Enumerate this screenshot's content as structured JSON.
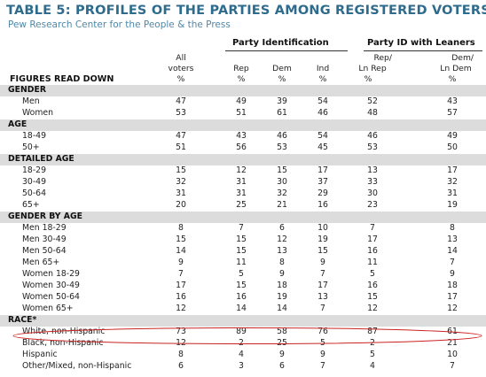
{
  "title": "TABLE 5: PROFILES OF THE PARTIES AMONG REGISTERED VOTERS",
  "subtitle": "Pew Research Center for the People & the Press",
  "group_headers": {
    "party_id": "Party Identification",
    "party_id_leaners": "Party ID with Leaners"
  },
  "column_headers": {
    "all_line1": "All",
    "all_line2": "voters",
    "rep": "Rep",
    "dem": "Dem",
    "ind": "Ind",
    "rep_ln_line1": "Rep/",
    "rep_ln_line2": "Ln Rep",
    "dem_ln_line1": "Dem/",
    "dem_ln_line2": "Ln Dem",
    "pct": "%"
  },
  "figures_note": "FIGURES READ DOWN",
  "annotation_color": "#cc2222",
  "rows": [
    {
      "label": "GENDER",
      "section": true
    },
    {
      "label": "Men",
      "values": [
        "47",
        "49",
        "39",
        "54",
        "52",
        "43"
      ]
    },
    {
      "label": "Women",
      "values": [
        "53",
        "51",
        "61",
        "46",
        "48",
        "57"
      ]
    },
    {
      "label": "AGE",
      "section": true
    },
    {
      "label": "18-49",
      "values": [
        "47",
        "43",
        "46",
        "54",
        "46",
        "49"
      ]
    },
    {
      "label": "50+",
      "values": [
        "51",
        "56",
        "53",
        "45",
        "53",
        "50"
      ]
    },
    {
      "label": "DETAILED AGE",
      "section": true
    },
    {
      "label": "18-29",
      "values": [
        "15",
        "12",
        "15",
        "17",
        "13",
        "17"
      ]
    },
    {
      "label": "30-49",
      "values": [
        "32",
        "31",
        "30",
        "37",
        "33",
        "32"
      ]
    },
    {
      "label": "50-64",
      "values": [
        "31",
        "31",
        "32",
        "29",
        "30",
        "31"
      ]
    },
    {
      "label": "65+",
      "values": [
        "20",
        "25",
        "21",
        "16",
        "23",
        "19"
      ]
    },
    {
      "label": "GENDER BY AGE",
      "section": true
    },
    {
      "label": "Men 18-29",
      "values": [
        "8",
        "7",
        "6",
        "10",
        "7",
        "8"
      ]
    },
    {
      "label": "Men 30-49",
      "values": [
        "15",
        "15",
        "12",
        "19",
        "17",
        "13"
      ]
    },
    {
      "label": "Men 50-64",
      "values": [
        "14",
        "15",
        "13",
        "15",
        "16",
        "14"
      ]
    },
    {
      "label": "Men 65+",
      "values": [
        "9",
        "11",
        "8",
        "9",
        "11",
        "7"
      ]
    },
    {
      "label": "Women 18-29",
      "values": [
        "7",
        "5",
        "9",
        "7",
        "5",
        "9"
      ]
    },
    {
      "label": "Women 30-49",
      "values": [
        "17",
        "15",
        "18",
        "17",
        "16",
        "18"
      ]
    },
    {
      "label": "Women 50-64",
      "values": [
        "16",
        "16",
        "19",
        "13",
        "15",
        "17"
      ]
    },
    {
      "label": "Women 65+",
      "values": [
        "12",
        "14",
        "14",
        "7",
        "12",
        "12"
      ]
    },
    {
      "label": "RACE*",
      "section": true
    },
    {
      "label": "White, non-Hispanic",
      "values": [
        "73",
        "89",
        "58",
        "76",
        "87",
        "61"
      ]
    },
    {
      "label": "Black, non-Hispanic",
      "values": [
        "12",
        "2",
        "25",
        "5",
        "2",
        "21"
      ]
    },
    {
      "label": "Hispanic",
      "values": [
        "8",
        "4",
        "9",
        "9",
        "5",
        "10"
      ]
    },
    {
      "label": "Other/Mixed, non-Hispanic",
      "values": [
        "6",
        "3",
        "6",
        "7",
        "4",
        "7"
      ]
    }
  ]
}
